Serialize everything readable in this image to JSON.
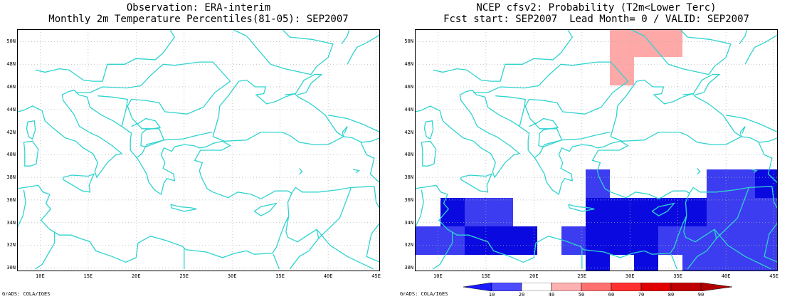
{
  "left_panel": {
    "title_line1": "Observation: ERA-interim",
    "title_line2": "Monthly 2m Temperature Percentiles(81-05): SEP2007",
    "footer": "GrADS: COLA/IGES"
  },
  "right_panel": {
    "title_line1": "NCEP cfsv2: Probability (T2m<Lower Terc)",
    "title_line2": "Fcst start: SEP2007  Lead Month= 0 / VALID: SEP2007",
    "footer": "GrADS: COLA/IGES"
  },
  "lat_labels": [
    "50N",
    "48N",
    "46N",
    "44N",
    "42N",
    "40N",
    "38N",
    "36N",
    "34N",
    "32N",
    "30N"
  ],
  "lon_labels": [
    "10E",
    "15E",
    "20E",
    "25E",
    "30E",
    "35E",
    "40E",
    "45E"
  ],
  "colorbar": {
    "labels": [
      "10",
      "20",
      "40",
      "50",
      "60",
      "70",
      "80",
      "90"
    ],
    "colors": [
      "#1a1aff",
      "#4d4dff",
      "#ffffff",
      "#ffb0b0",
      "#ff7070",
      "#ff3030",
      "#e00000",
      "#b00000"
    ]
  },
  "colors": {
    "coastline": "#2fd3cf",
    "grid": "#b0b0b0",
    "dark_blue": "#0a0ae0",
    "mid_blue": "#3c3cf0",
    "pink": "#ffa8a8"
  }
}
